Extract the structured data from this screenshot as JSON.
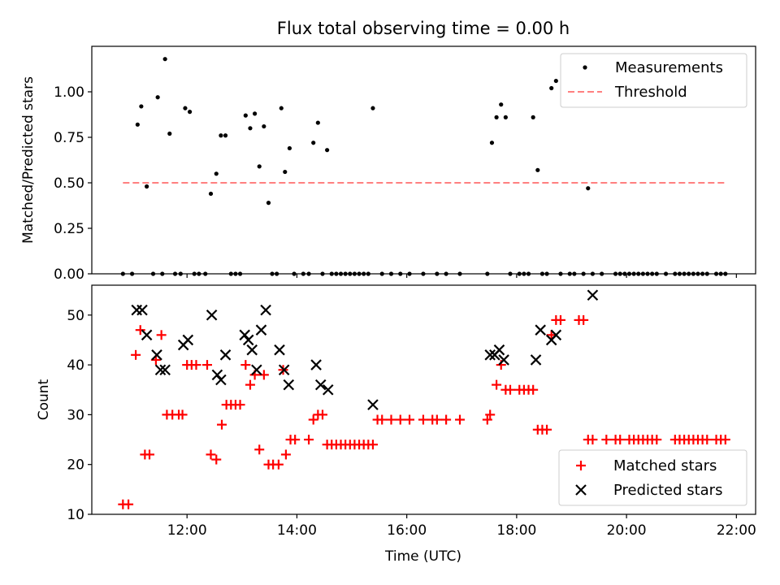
{
  "chart_data": [
    {
      "type": "scatter",
      "title": "Flux total observing time = 0.00 h",
      "xlabel": "",
      "ylabel": "Matched/Predicted stars",
      "xlim": [
        "10:16",
        "22:21"
      ],
      "ylim": [
        0,
        1.25
      ],
      "yticks": [
        0.0,
        0.25,
        0.5,
        0.75,
        1.0
      ],
      "ytick_labels": [
        "0.00",
        "0.25",
        "0.50",
        "0.75",
        "1.00"
      ],
      "legend": "top-right",
      "series": [
        {
          "name": "Measurements",
          "marker": "dot",
          "color": "#000000",
          "points": [
            [
              "10:50",
              0
            ],
            [
              "11:00",
              0
            ],
            [
              "11:06",
              0.82
            ],
            [
              "11:10",
              0.92
            ],
            [
              "11:16",
              0.48
            ],
            [
              "11:23",
              0
            ],
            [
              "11:28",
              0.97
            ],
            [
              "11:33",
              0
            ],
            [
              "11:36",
              1.18
            ],
            [
              "11:41",
              0.77
            ],
            [
              "11:47",
              0
            ],
            [
              "11:53",
              0
            ],
            [
              "11:58",
              0.91
            ],
            [
              "12:03",
              0.89
            ],
            [
              "12:08",
              0
            ],
            [
              "12:13",
              0
            ],
            [
              "12:20",
              0
            ],
            [
              "12:26",
              0.44
            ],
            [
              "12:32",
              0.55
            ],
            [
              "12:37",
              0.76
            ],
            [
              "12:42",
              0.76
            ],
            [
              "12:48",
              0
            ],
            [
              "12:53",
              0
            ],
            [
              "12:58",
              0
            ],
            [
              "13:04",
              0.87
            ],
            [
              "13:09",
              0.8
            ],
            [
              "13:14",
              0.88
            ],
            [
              "13:19",
              0.59
            ],
            [
              "13:24",
              0.81
            ],
            [
              "13:29",
              0.39
            ],
            [
              "13:33",
              0
            ],
            [
              "13:38",
              0
            ],
            [
              "13:43",
              0.91
            ],
            [
              "13:47",
              0.56
            ],
            [
              "13:52",
              0.69
            ],
            [
              "13:57",
              0
            ],
            [
              "14:07",
              0
            ],
            [
              "14:13",
              0
            ],
            [
              "14:18",
              0.72
            ],
            [
              "14:23",
              0.83
            ],
            [
              "14:28",
              0
            ],
            [
              "14:33",
              0.68
            ],
            [
              "14:38",
              0
            ],
            [
              "14:43",
              0
            ],
            [
              "14:48",
              0
            ],
            [
              "14:53",
              0
            ],
            [
              "14:58",
              0
            ],
            [
              "15:03",
              0
            ],
            [
              "15:08",
              0
            ],
            [
              "15:13",
              0
            ],
            [
              "15:18",
              0
            ],
            [
              "15:23",
              0.91
            ],
            [
              "15:33",
              0
            ],
            [
              "15:43",
              0
            ],
            [
              "15:53",
              0
            ],
            [
              "16:03",
              0
            ],
            [
              "16:18",
              0
            ],
            [
              "16:33",
              0
            ],
            [
              "16:43",
              0
            ],
            [
              "16:58",
              0
            ],
            [
              "17:28",
              0
            ],
            [
              "17:33",
              0.72
            ],
            [
              "17:38",
              0.86
            ],
            [
              "17:43",
              0.93
            ],
            [
              "17:48",
              0.86
            ],
            [
              "17:53",
              0
            ],
            [
              "18:03",
              0
            ],
            [
              "18:08",
              0
            ],
            [
              "18:13",
              0
            ],
            [
              "18:18",
              0.86
            ],
            [
              "18:23",
              0.57
            ],
            [
              "18:28",
              0
            ],
            [
              "18:33",
              0
            ],
            [
              "18:38",
              1.02
            ],
            [
              "18:43",
              1.06
            ],
            [
              "18:48",
              0
            ],
            [
              "18:58",
              0
            ],
            [
              "19:03",
              0
            ],
            [
              "19:13",
              0
            ],
            [
              "19:18",
              0.47
            ],
            [
              "19:23",
              0
            ],
            [
              "19:33",
              0
            ],
            [
              "19:48",
              0
            ],
            [
              "19:53",
              0
            ],
            [
              "19:58",
              0
            ],
            [
              "20:03",
              0
            ],
            [
              "20:08",
              0
            ],
            [
              "20:13",
              0
            ],
            [
              "20:18",
              0
            ],
            [
              "20:23",
              0
            ],
            [
              "20:28",
              0
            ],
            [
              "20:33",
              0
            ],
            [
              "20:43",
              0
            ],
            [
              "20:53",
              0
            ],
            [
              "20:58",
              0
            ],
            [
              "21:03",
              0
            ],
            [
              "21:08",
              0
            ],
            [
              "21:13",
              0
            ],
            [
              "21:18",
              0
            ],
            [
              "21:23",
              0
            ],
            [
              "21:28",
              0
            ],
            [
              "21:38",
              0
            ],
            [
              "21:43",
              0
            ],
            [
              "21:48",
              0
            ]
          ]
        },
        {
          "name": "Threshold",
          "marker": "dashed-line",
          "color": "#ff7f7f",
          "value": 0.5,
          "x_range": [
            "10:50",
            "21:48"
          ]
        }
      ]
    },
    {
      "type": "scatter",
      "title": "",
      "xlabel": "Time (UTC)",
      "ylabel": "Count",
      "xlim": [
        "10:16",
        "22:21"
      ],
      "ylim": [
        10,
        56
      ],
      "yticks": [
        10,
        20,
        30,
        40,
        50
      ],
      "ytick_labels": [
        "10",
        "20",
        "30",
        "40",
        "50"
      ],
      "xticks": [
        "12:00",
        "14:00",
        "16:00",
        "18:00",
        "20:00",
        "22:00"
      ],
      "xtick_labels": [
        "12:00",
        "14:00",
        "16:00",
        "18:00",
        "20:00",
        "22:00"
      ],
      "legend": "bottom-right",
      "series": [
        {
          "name": "Matched stars",
          "marker": "plus",
          "color": "#ff0000",
          "points": [
            [
              "10:50",
              12
            ],
            [
              "10:56",
              12
            ],
            [
              "11:04",
              42
            ],
            [
              "11:09",
              47
            ],
            [
              "11:14",
              22
            ],
            [
              "11:19",
              22
            ],
            [
              "11:26",
              41
            ],
            [
              "11:32",
              46
            ],
            [
              "11:38",
              30
            ],
            [
              "11:44",
              30
            ],
            [
              "11:51",
              30
            ],
            [
              "11:55",
              30
            ],
            [
              "12:00",
              40
            ],
            [
              "12:05",
              40
            ],
            [
              "12:10",
              40
            ],
            [
              "12:22",
              40
            ],
            [
              "12:26",
              22
            ],
            [
              "12:32",
              21
            ],
            [
              "12:38",
              28
            ],
            [
              "12:43",
              32
            ],
            [
              "12:48",
              32
            ],
            [
              "12:53",
              32
            ],
            [
              "12:58",
              32
            ],
            [
              "13:04",
              40
            ],
            [
              "13:09",
              36
            ],
            [
              "13:14",
              38
            ],
            [
              "13:19",
              23
            ],
            [
              "13:24",
              38
            ],
            [
              "13:29",
              20
            ],
            [
              "13:34",
              20
            ],
            [
              "13:40",
              20
            ],
            [
              "13:45",
              39
            ],
            [
              "13:48",
              22
            ],
            [
              "13:53",
              25
            ],
            [
              "13:58",
              25
            ],
            [
              "14:13",
              25
            ],
            [
              "14:18",
              29
            ],
            [
              "14:23",
              30
            ],
            [
              "14:28",
              30
            ],
            [
              "14:33",
              24
            ],
            [
              "14:38",
              24
            ],
            [
              "14:43",
              24
            ],
            [
              "14:48",
              24
            ],
            [
              "14:53",
              24
            ],
            [
              "14:58",
              24
            ],
            [
              "15:03",
              24
            ],
            [
              "15:08",
              24
            ],
            [
              "15:13",
              24
            ],
            [
              "15:18",
              24
            ],
            [
              "15:23",
              24
            ],
            [
              "15:28",
              29
            ],
            [
              "15:33",
              29
            ],
            [
              "15:43",
              29
            ],
            [
              "15:53",
              29
            ],
            [
              "16:03",
              29
            ],
            [
              "16:18",
              29
            ],
            [
              "16:28",
              29
            ],
            [
              "16:33",
              29
            ],
            [
              "16:43",
              29
            ],
            [
              "16:58",
              29
            ],
            [
              "17:28",
              29
            ],
            [
              "17:31",
              30
            ],
            [
              "17:38",
              36
            ],
            [
              "17:43",
              40
            ],
            [
              "17:48",
              35
            ],
            [
              "17:53",
              35
            ],
            [
              "18:03",
              35
            ],
            [
              "18:08",
              35
            ],
            [
              "18:13",
              35
            ],
            [
              "18:18",
              35
            ],
            [
              "18:23",
              27
            ],
            [
              "18:28",
              27
            ],
            [
              "18:33",
              27
            ],
            [
              "18:38",
              46
            ],
            [
              "18:43",
              49
            ],
            [
              "18:48",
              49
            ],
            [
              "19:08",
              49
            ],
            [
              "19:13",
              49
            ],
            [
              "19:18",
              25
            ],
            [
              "19:23",
              25
            ],
            [
              "19:38",
              25
            ],
            [
              "19:48",
              25
            ],
            [
              "19:53",
              25
            ],
            [
              "20:03",
              25
            ],
            [
              "20:08",
              25
            ],
            [
              "20:13",
              25
            ],
            [
              "20:18",
              25
            ],
            [
              "20:23",
              25
            ],
            [
              "20:28",
              25
            ],
            [
              "20:33",
              25
            ],
            [
              "20:53",
              25
            ],
            [
              "20:58",
              25
            ],
            [
              "21:03",
              25
            ],
            [
              "21:08",
              25
            ],
            [
              "21:13",
              25
            ],
            [
              "21:18",
              25
            ],
            [
              "21:23",
              25
            ],
            [
              "21:28",
              25
            ],
            [
              "21:38",
              25
            ],
            [
              "21:43",
              25
            ],
            [
              "21:48",
              25
            ]
          ]
        },
        {
          "name": "Predicted stars",
          "marker": "x",
          "color": "#000000",
          "points": [
            [
              "11:05",
              51
            ],
            [
              "11:11",
              51
            ],
            [
              "11:16",
              46
            ],
            [
              "11:27",
              42
            ],
            [
              "11:31",
              39
            ],
            [
              "11:36",
              39
            ],
            [
              "11:56",
              44
            ],
            [
              "12:01",
              45
            ],
            [
              "12:27",
              50
            ],
            [
              "12:33",
              38
            ],
            [
              "12:37",
              37
            ],
            [
              "12:42",
              42
            ],
            [
              "13:03",
              46
            ],
            [
              "13:07",
              45
            ],
            [
              "13:11",
              43
            ],
            [
              "13:16",
              39
            ],
            [
              "13:21",
              47
            ],
            [
              "13:26",
              51
            ],
            [
              "13:41",
              43
            ],
            [
              "13:46",
              39
            ],
            [
              "13:51",
              36
            ],
            [
              "14:21",
              40
            ],
            [
              "14:26",
              36
            ],
            [
              "14:34",
              35
            ],
            [
              "15:23",
              32
            ],
            [
              "17:31",
              42
            ],
            [
              "17:36",
              42
            ],
            [
              "17:41",
              43
            ],
            [
              "17:46",
              41
            ],
            [
              "18:21",
              41
            ],
            [
              "18:26",
              47
            ],
            [
              "18:38",
              45
            ],
            [
              "18:43",
              46
            ],
            [
              "19:23",
              54
            ]
          ]
        }
      ]
    }
  ]
}
